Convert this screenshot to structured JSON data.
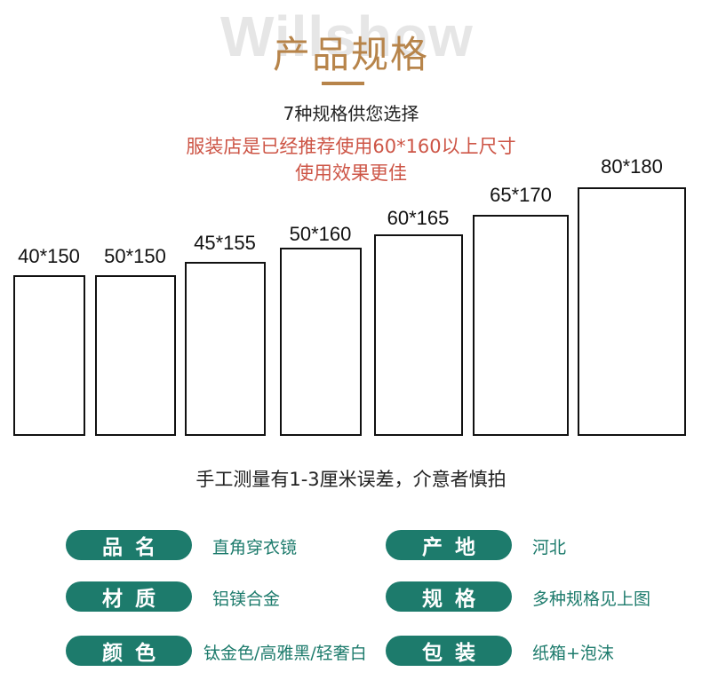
{
  "header": {
    "watermark": "Willshow",
    "title": "产品规格",
    "subtitle": "7种规格供您选择",
    "recommend_line1": "服装店是已经推荐使用60*160以上尺寸",
    "recommend_line2": "使用效果更佳",
    "accent_color": "#b7844a",
    "highlight_color": "#cd5546"
  },
  "sizes": [
    {
      "label": "40*150"
    },
    {
      "label": "50*150"
    },
    {
      "label": "45*155"
    },
    {
      "label": "50*160"
    },
    {
      "label": "60*165"
    },
    {
      "label": "65*170"
    },
    {
      "label": "80*180"
    }
  ],
  "note": "手工测量有1-3厘米误差，介意者慎拍",
  "specs": {
    "pill_color": "#1d7b6c",
    "items": [
      {
        "key": "品名",
        "value": "直角穿衣镜"
      },
      {
        "key": "产地",
        "value": "河北"
      },
      {
        "key": "材质",
        "value": "铝镁合金"
      },
      {
        "key": "规格",
        "value": "多种规格见上图"
      },
      {
        "key": "颜色",
        "value": "钛金色/高雅黑/轻奢白"
      },
      {
        "key": "包装",
        "value": "纸箱+泡沫"
      }
    ]
  }
}
